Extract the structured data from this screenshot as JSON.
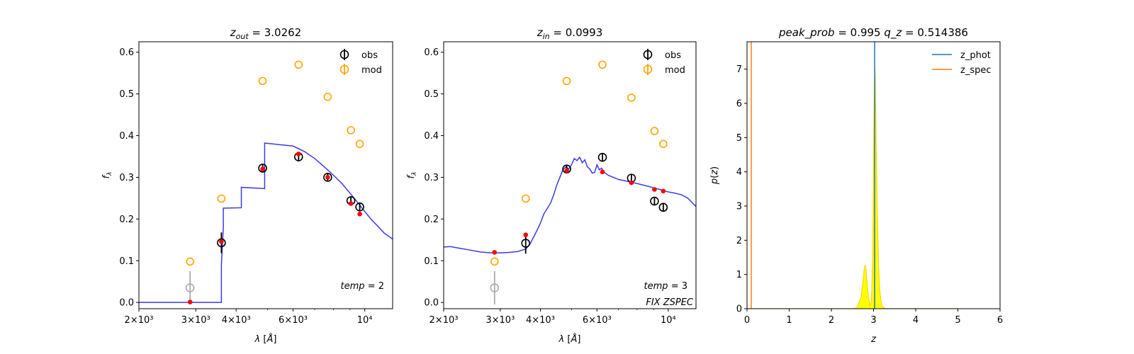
{
  "chart_data": [
    {
      "type": "line",
      "title": {
        "math": "z",
        "sub": "out",
        "rest": " = 3.0262"
      },
      "xlabel": "λ [Å]",
      "ylabel": "f_λ",
      "x_scale": "log",
      "xlim": [
        2000,
        12200
      ],
      "ylim": [
        -0.015,
        0.625
      ],
      "x_ticks": [
        {
          "v": 2000,
          "l": "2×10³"
        },
        {
          "v": 3000,
          "l": "3×10³"
        },
        {
          "v": 4000,
          "l": "4×10³"
        },
        {
          "v": 6000,
          "l": "6×10³"
        },
        {
          "v": 10000,
          "l": "10⁴"
        }
      ],
      "y_ticks": [
        0.0,
        0.1,
        0.2,
        0.3,
        0.4,
        0.5,
        0.6
      ],
      "y_tick_labels": [
        "0.0",
        "0.1",
        "0.2",
        "0.3",
        "0.4",
        "0.5",
        "0.6"
      ],
      "legend": {
        "position": "top-right",
        "entries": [
          {
            "label": "obs",
            "color": "#000000"
          },
          {
            "label": "mod",
            "color": "#ffa500"
          }
        ]
      },
      "annotation": {
        "italic": "temp",
        "rest": " = 2"
      },
      "annotation2": "",
      "model_line": {
        "color": "#3a3ae8",
        "x": [
          2000,
          3600,
          3600,
          3650,
          3650,
          4150,
          4150,
          4900,
          4900,
          5500,
          6000,
          6500,
          7000,
          7500,
          8000,
          8500,
          9000,
          9500,
          10000,
          10500,
          11000,
          11500,
          12200
        ],
        "y": [
          0.0,
          0.0,
          0.09,
          0.18,
          0.226,
          0.227,
          0.276,
          0.273,
          0.382,
          0.378,
          0.375,
          0.362,
          0.345,
          0.325,
          0.305,
          0.285,
          0.262,
          0.24,
          0.218,
          0.198,
          0.182,
          0.166,
          0.152
        ]
      },
      "obs_points": [
        {
          "x": 2880,
          "y": 0.035,
          "err": 0.04,
          "color": "#aaaaaa"
        },
        {
          "x": 3600,
          "y": 0.143,
          "err": 0.025,
          "color": "#000000"
        },
        {
          "x": 4830,
          "y": 0.322,
          "err": 0.01,
          "color": "#000000"
        },
        {
          "x": 6240,
          "y": 0.349,
          "err": 0.01,
          "color": "#000000"
        },
        {
          "x": 7680,
          "y": 0.3,
          "err": 0.01,
          "color": "#000000"
        },
        {
          "x": 9060,
          "y": 0.244,
          "err": 0.01,
          "color": "#000000"
        },
        {
          "x": 9650,
          "y": 0.229,
          "err": 0.01,
          "color": "#000000"
        }
      ],
      "mod_points": [
        {
          "x": 2880,
          "y": 0.098
        },
        {
          "x": 3600,
          "y": 0.249
        },
        {
          "x": 4830,
          "y": 0.531
        },
        {
          "x": 6240,
          "y": 0.57
        },
        {
          "x": 7680,
          "y": 0.493
        },
        {
          "x": 9060,
          "y": 0.413
        },
        {
          "x": 9650,
          "y": 0.38
        }
      ],
      "fit_points": [
        {
          "x": 2880,
          "y": 0.001
        },
        {
          "x": 3600,
          "y": 0.146
        },
        {
          "x": 4830,
          "y": 0.32
        },
        {
          "x": 6240,
          "y": 0.356
        },
        {
          "x": 7680,
          "y": 0.3
        },
        {
          "x": 9060,
          "y": 0.237
        },
        {
          "x": 9650,
          "y": 0.212
        }
      ]
    },
    {
      "type": "line",
      "title": {
        "math": "z",
        "sub": "in",
        "rest": " = 0.0993"
      },
      "xlabel": "λ [Å]",
      "ylabel": "f_λ",
      "x_scale": "log",
      "xlim": [
        2000,
        12200
      ],
      "ylim": [
        -0.015,
        0.625
      ],
      "x_ticks": [
        {
          "v": 2000,
          "l": "2×10³"
        },
        {
          "v": 3000,
          "l": "3×10³"
        },
        {
          "v": 4000,
          "l": "4×10³"
        },
        {
          "v": 6000,
          "l": "6×10³"
        },
        {
          "v": 10000,
          "l": "10⁴"
        }
      ],
      "y_ticks": [
        0.0,
        0.1,
        0.2,
        0.3,
        0.4,
        0.5,
        0.6
      ],
      "y_tick_labels": [
        "0.0",
        "0.1",
        "0.2",
        "0.3",
        "0.4",
        "0.5",
        "0.6"
      ],
      "legend": {
        "position": "top-right",
        "entries": [
          {
            "label": "obs",
            "color": "#000000"
          },
          {
            "label": "mod",
            "color": "#ffa500"
          }
        ]
      },
      "annotation": {
        "italic": "temp",
        "rest": " = 3"
      },
      "annotation2": "FIX ZSPEC",
      "model_line": {
        "color": "#3a3ae8",
        "x": [
          2000,
          2100,
          2200,
          2400,
          2600,
          2800,
          3000,
          3200,
          3400,
          3600,
          3700,
          3800,
          3900,
          4000,
          4100,
          4200,
          4300,
          4400,
          4500,
          4600,
          4700,
          4800,
          4900,
          5000,
          5100,
          5200,
          5300,
          5400,
          5500,
          5600,
          5700,
          5800,
          5900,
          6000,
          6100,
          6200,
          6300,
          6500,
          7000,
          7500,
          8000,
          8500,
          9000,
          9500,
          10000,
          10500,
          11000,
          11500,
          12200
        ],
        "y": [
          0.133,
          0.134,
          0.131,
          0.126,
          0.121,
          0.119,
          0.119,
          0.12,
          0.122,
          0.128,
          0.138,
          0.155,
          0.172,
          0.19,
          0.212,
          0.225,
          0.238,
          0.258,
          0.282,
          0.3,
          0.318,
          0.325,
          0.32,
          0.33,
          0.345,
          0.34,
          0.348,
          0.335,
          0.342,
          0.325,
          0.32,
          0.31,
          0.312,
          0.33,
          0.318,
          0.322,
          0.313,
          0.305,
          0.295,
          0.29,
          0.285,
          0.28,
          0.275,
          0.27,
          0.265,
          0.262,
          0.258,
          0.25,
          0.23
        ]
      },
      "obs_points": [
        {
          "x": 2880,
          "y": 0.035,
          "err": 0.04,
          "color": "#aaaaaa"
        },
        {
          "x": 3600,
          "y": 0.142,
          "err": 0.025,
          "color": "#000000"
        },
        {
          "x": 4830,
          "y": 0.32,
          "err": 0.01,
          "color": "#000000"
        },
        {
          "x": 6240,
          "y": 0.348,
          "err": 0.01,
          "color": "#000000"
        },
        {
          "x": 7680,
          "y": 0.298,
          "err": 0.01,
          "color": "#000000"
        },
        {
          "x": 9060,
          "y": 0.243,
          "err": 0.01,
          "color": "#000000"
        },
        {
          "x": 9650,
          "y": 0.228,
          "err": 0.01,
          "color": "#000000"
        }
      ],
      "mod_points": [
        {
          "x": 2880,
          "y": 0.098
        },
        {
          "x": 3600,
          "y": 0.249
        },
        {
          "x": 4830,
          "y": 0.531
        },
        {
          "x": 6240,
          "y": 0.57
        },
        {
          "x": 7680,
          "y": 0.491
        },
        {
          "x": 9060,
          "y": 0.411
        },
        {
          "x": 9650,
          "y": 0.38
        }
      ],
      "fit_points": [
        {
          "x": 2880,
          "y": 0.12
        },
        {
          "x": 3600,
          "y": 0.162
        },
        {
          "x": 4830,
          "y": 0.316
        },
        {
          "x": 6240,
          "y": 0.313
        },
        {
          "x": 7680,
          "y": 0.287
        },
        {
          "x": 9060,
          "y": 0.271
        },
        {
          "x": 9650,
          "y": 0.267
        }
      ]
    },
    {
      "type": "line",
      "title": {
        "part1_italic": "peak_prob",
        "part1_rest": " = 0.995",
        "part2_italic": "q_z",
        "part2_rest": " = 0.514386"
      },
      "xlabel": "z",
      "ylabel": "p(z)",
      "x_scale": "linear",
      "xlim": [
        0,
        6
      ],
      "ylim": [
        0,
        7.8
      ],
      "x_ticks": [
        {
          "v": 0,
          "l": "0"
        },
        {
          "v": 1,
          "l": "1"
        },
        {
          "v": 2,
          "l": "2"
        },
        {
          "v": 3,
          "l": "3"
        },
        {
          "v": 4,
          "l": "4"
        },
        {
          "v": 5,
          "l": "5"
        },
        {
          "v": 6,
          "l": "6"
        }
      ],
      "y_ticks": [
        0,
        1,
        2,
        3,
        4,
        5,
        6,
        7
      ],
      "y_tick_labels": [
        "0",
        "1",
        "2",
        "3",
        "4",
        "5",
        "6",
        "7"
      ],
      "legend": {
        "position": "top-right",
        "entries": [
          {
            "label": "z_phot",
            "color": "#1f77b4"
          },
          {
            "label": "z_spec",
            "color": "#ff7f0e"
          }
        ]
      },
      "vlines": [
        {
          "x": 3.0262,
          "color": "#1f77b4"
        },
        {
          "x": 0.0993,
          "color": "#ff7f0e"
        }
      ],
      "pdf": {
        "color": "#ffd700",
        "fill": "#ffff00",
        "x": [
          0,
          2.5,
          2.6,
          2.7,
          2.75,
          2.78,
          2.8,
          2.82,
          2.85,
          2.88,
          2.92,
          2.95,
          2.98,
          3.0,
          3.01,
          3.02,
          3.03,
          3.04,
          3.05,
          3.06,
          3.08,
          3.1,
          3.12,
          3.15,
          3.18,
          3.2,
          3.25,
          3.3,
          5.0
        ],
        "y": [
          0,
          0,
          0.02,
          0.3,
          0.8,
          1.15,
          1.28,
          1.15,
          0.7,
          0.3,
          0.1,
          0.2,
          1.5,
          4.0,
          5.5,
          6.5,
          7.05,
          6.8,
          6.0,
          5.0,
          3.5,
          2.2,
          1.2,
          0.5,
          0.2,
          0.08,
          0.02,
          0,
          0
        ]
      }
    }
  ]
}
